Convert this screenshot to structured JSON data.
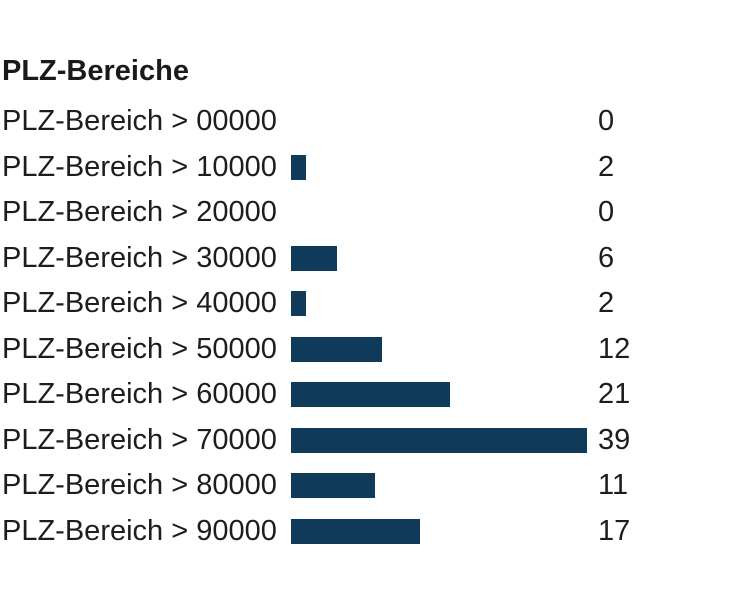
{
  "widget": {
    "title": "PLZ-Bereiche"
  },
  "chart_data": {
    "type": "bar",
    "orientation": "horizontal",
    "title": "PLZ-Bereiche",
    "categories": [
      "PLZ-Bereich > 00000",
      "PLZ-Bereich > 10000",
      "PLZ-Bereich > 20000",
      "PLZ-Bereich > 30000",
      "PLZ-Bereich > 40000",
      "PLZ-Bereich > 50000",
      "PLZ-Bereich > 60000",
      "PLZ-Bereich > 70000",
      "PLZ-Bereich > 80000",
      "PLZ-Bereich > 90000"
    ],
    "values": [
      0,
      2,
      0,
      6,
      2,
      12,
      21,
      39,
      11,
      17
    ],
    "xlim": [
      0,
      39
    ],
    "value_label_position": "right-column",
    "legend": "none",
    "grid": false,
    "bar_color": "#0f3a5a",
    "text_color": "#1d1d1d",
    "title_color": "#1a1a1a",
    "background_color": "#ffffff"
  }
}
